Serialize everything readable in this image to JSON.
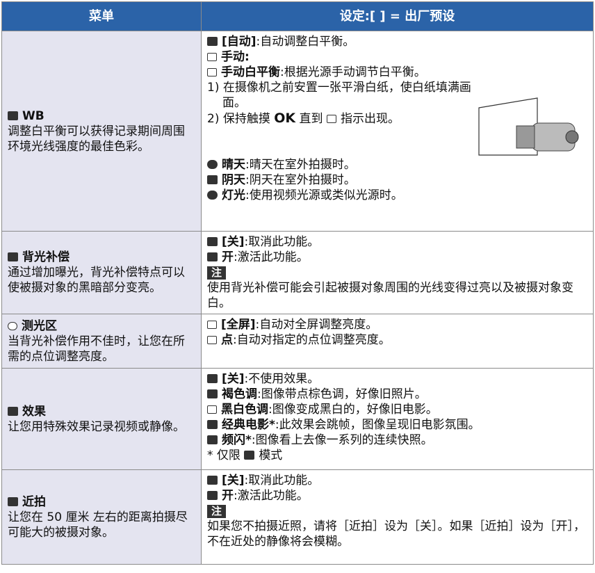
{
  "table": {
    "headers": [
      "菜单",
      "设定:[ ] = 出厂预设"
    ],
    "rows": [
      {
        "menu_title": "WB",
        "menu_desc": "调整白平衡可以获得记录期间周围环境光线强度的最佳色彩。",
        "items": [
          {
            "label": "[自动]",
            "text": ":自动调整白平衡。"
          },
          {
            "label": "手动:",
            "text": ""
          },
          {
            "label": "手动白平衡",
            "text": ":根据光源手动调节白平衡。"
          }
        ],
        "step_1": "1) 在摄像机之前安置一张平滑白纸，使白纸填满画面。",
        "step_2": {
          "before": "2) 保持触摸",
          "key": "OK",
          "after": "直到",
          "end": "指示出现。"
        },
        "items_2": [
          {
            "label": "晴天",
            "text": ":晴天在室外拍摄时。"
          },
          {
            "label": "阴天",
            "text": ":阴天在室外拍摄时。"
          },
          {
            "label": "灯光",
            "text": ":使用视频光源或类似光源时。"
          }
        ]
      },
      {
        "menu_title": "背光补偿",
        "menu_desc": "通过增加曝光，背光补偿特点可以使被摄对象的黑暗部分变亮。",
        "items": [
          {
            "label": "[关]",
            "text": ":取消此功能。"
          },
          {
            "label": "开",
            "text": ":激活此功能。"
          }
        ],
        "note_label": "注",
        "note": "使用背光补偿可能会引起被摄对象周围的光线变得过亮以及被摄对象变白。"
      },
      {
        "menu_title": "测光区",
        "menu_desc": "当背光补偿作用不佳时，让您在所需的点位调整亮度。",
        "items": [
          {
            "label": "[全屏]",
            "text": ":自动对全屏调整亮度。"
          },
          {
            "label": "点",
            "text": ":自动对指定的点位调整亮度。"
          }
        ]
      },
      {
        "menu_title": "效果",
        "menu_desc": "让您用特殊效果记录视频或静像。",
        "items": [
          {
            "label": "[关]",
            "text": ":不使用效果。"
          },
          {
            "label": "褐色调",
            "text": ":图像带点棕色调，好像旧照片。"
          },
          {
            "label": "黑白色调",
            "text": ":图像变成黑白的，好像旧电影。"
          },
          {
            "label": "经典电影*",
            "text": ":此效果会跳帧，图像呈现旧电影氛围。"
          },
          {
            "label": "频闪*",
            "text": ":图像看上去像一系列的连续快照。"
          }
        ],
        "footnote": {
          "before": "* 仅限",
          "after": "模式"
        }
      },
      {
        "menu_title": "近拍",
        "menu_desc": "让您在 50 厘米 左右的距离拍摄尽可能大的被摄对象。",
        "items": [
          {
            "label": "[关]",
            "text": ":取消此功能。"
          },
          {
            "label": "开",
            "text": ":激活此功能。"
          }
        ],
        "note_label": "注",
        "note": "如果您不拍摄近照，请将［近拍］设为［关］。如果［近拍］设为［开］，不在近处的静像将会模糊。"
      }
    ]
  }
}
